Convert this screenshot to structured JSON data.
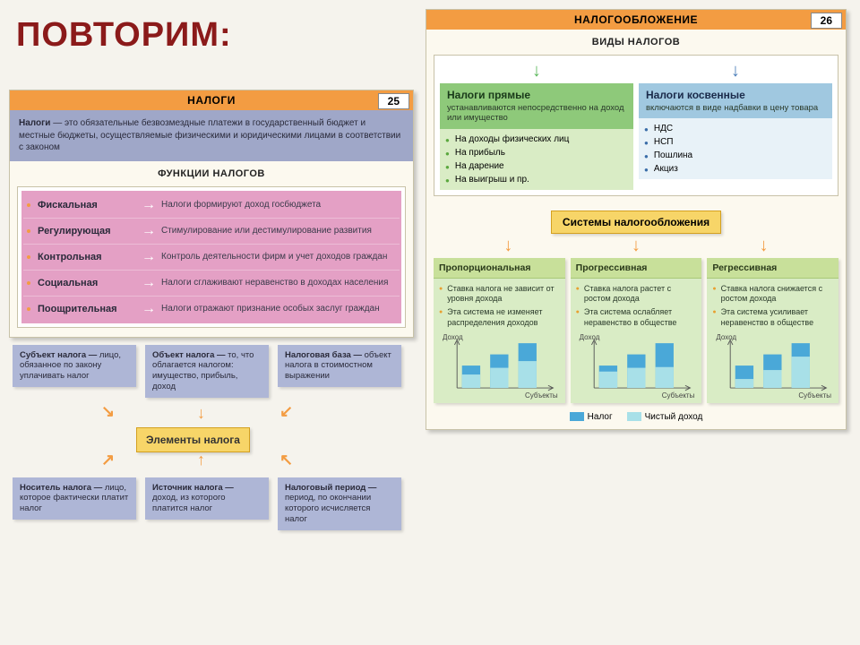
{
  "page_title": "ПОВТОРИМ:",
  "left": {
    "header": "НАЛОГИ",
    "page_num": "25",
    "definition_label": "Налоги",
    "definition_text": " — это обязательные безвозмездные платежи в государственный бюджет и местные бюджеты, осуществляемые физическими и юридическими лицами в соответствии с законом",
    "functions_title": "ФУНКЦИИ НАЛОГОВ",
    "functions": [
      {
        "name": "Фискальная",
        "desc": "Налоги формируют доход госбюджета"
      },
      {
        "name": "Регулирующая",
        "desc": "Стимулирование или дестимулирование развития"
      },
      {
        "name": "Контрольная",
        "desc": "Контроль деятельности фирм и учет доходов граждан"
      },
      {
        "name": "Социальная",
        "desc": "Налоги сглаживают неравенство в доходах населения"
      },
      {
        "name": "Поощрительная",
        "desc": "Налоги отражают признание особых заслуг граждан"
      }
    ],
    "elements_center": "Элементы налога",
    "elements": [
      {
        "title": "Субъект налога — ",
        "text": "лицо, обязанное по закону уплачивать налог"
      },
      {
        "title": "Объект налога — ",
        "text": "то, что облагается налогом: имущество, прибыль, доход"
      },
      {
        "title": "Налоговая база — ",
        "text": "объект налога в стоимостном выражении"
      },
      {
        "title": "Носитель налога — ",
        "text": "лицо, которое фактически платит налог"
      },
      {
        "title": "Источник налога — ",
        "text": "доход, из которого платится налог"
      },
      {
        "title": "Налоговый период — ",
        "text": "период, по окончании которого исчисляется налог"
      }
    ]
  },
  "right": {
    "header": "НАЛОГООБЛОЖЕНИЕ",
    "page_num": "26",
    "types_title": "ВИДЫ НАЛОГОВ",
    "direct": {
      "name": "Налоги прямые",
      "desc": "устанавливаются непосредственно на доход или имущество",
      "items": [
        "На доходы физических лиц",
        "На прибыль",
        "На дарение",
        "На выигрыш и пр."
      ]
    },
    "indirect": {
      "name": "Налоги косвенные",
      "desc": "включаются в виде надбавки в цену товара",
      "items": [
        "НДС",
        "НСП",
        "Пошлина",
        "Акциз"
      ]
    },
    "systems_title": "Системы налогообложения",
    "systems": [
      {
        "name": "Пропорциональная",
        "p1": "Ставка налога не зависит от уровня дохода",
        "p2": "Эта система не изменяет распределения доходов"
      },
      {
        "name": "Прогрессивная",
        "p1": "Ставка налога растет с ростом дохода",
        "p2": "Эта система ослабляет неравенство в обществе"
      },
      {
        "name": "Регрессивная",
        "p1": "Ставка налога снижается с ростом дохода",
        "p2": "Эта система усиливает неравенство в обществе"
      }
    ],
    "chart": {
      "ylabel": "Доход",
      "xlabel": "Субъекты",
      "colors": {
        "tax": "#4aa8d8",
        "net": "#a8e0e8",
        "axis": "#555"
      },
      "proportional": {
        "total": [
          30,
          45,
          60
        ],
        "net": [
          18,
          27,
          36
        ]
      },
      "progressive": {
        "total": [
          30,
          45,
          60
        ],
        "net": [
          22,
          27,
          28
        ]
      },
      "regressive": {
        "total": [
          30,
          45,
          60
        ],
        "net": [
          12,
          24,
          42
        ]
      }
    },
    "legend": {
      "tax": "Налог",
      "net": "Чистый доход"
    }
  },
  "colors": {
    "orange": "#f39c42",
    "purple": "#aeb6d6",
    "pink": "#e4a0c5",
    "yellow": "#f7d568",
    "green": "#8ec97a",
    "greenlight": "#d9ecc5",
    "blue": "#a0c8e0",
    "bluelight": "#e8f2f8"
  }
}
